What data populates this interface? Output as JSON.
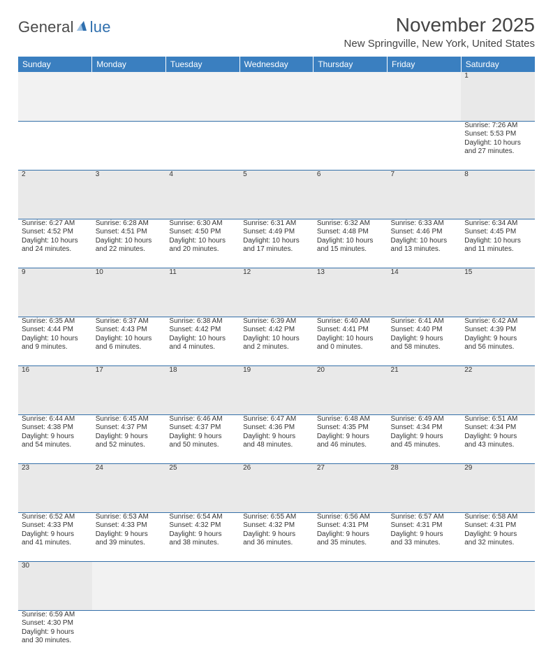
{
  "logo": {
    "part1": "General",
    "part2": "lue"
  },
  "header": {
    "month_title": "November 2025",
    "location": "New Springville, New York, United States"
  },
  "day_headers": [
    "Sunday",
    "Monday",
    "Tuesday",
    "Wednesday",
    "Thursday",
    "Friday",
    "Saturday"
  ],
  "colors": {
    "header_bg": "#3a7fc0",
    "rule": "#346fa8",
    "daynum_bg": "#e9e9e9",
    "text": "#333333"
  },
  "weeks": [
    {
      "nums": [
        "",
        "",
        "",
        "",
        "",
        "",
        "1"
      ],
      "sunrise": [
        "",
        "",
        "",
        "",
        "",
        "",
        "Sunrise: 7:26 AM"
      ],
      "sunset": [
        "",
        "",
        "",
        "",
        "",
        "",
        "Sunset: 5:53 PM"
      ],
      "day1": [
        "",
        "",
        "",
        "",
        "",
        "",
        "Daylight: 10 hours"
      ],
      "day2": [
        "",
        "",
        "",
        "",
        "",
        "",
        "and 27 minutes."
      ]
    },
    {
      "nums": [
        "2",
        "3",
        "4",
        "5",
        "6",
        "7",
        "8"
      ],
      "sunrise": [
        "Sunrise: 6:27 AM",
        "Sunrise: 6:28 AM",
        "Sunrise: 6:30 AM",
        "Sunrise: 6:31 AM",
        "Sunrise: 6:32 AM",
        "Sunrise: 6:33 AM",
        "Sunrise: 6:34 AM"
      ],
      "sunset": [
        "Sunset: 4:52 PM",
        "Sunset: 4:51 PM",
        "Sunset: 4:50 PM",
        "Sunset: 4:49 PM",
        "Sunset: 4:48 PM",
        "Sunset: 4:46 PM",
        "Sunset: 4:45 PM"
      ],
      "day1": [
        "Daylight: 10 hours",
        "Daylight: 10 hours",
        "Daylight: 10 hours",
        "Daylight: 10 hours",
        "Daylight: 10 hours",
        "Daylight: 10 hours",
        "Daylight: 10 hours"
      ],
      "day2": [
        "and 24 minutes.",
        "and 22 minutes.",
        "and 20 minutes.",
        "and 17 minutes.",
        "and 15 minutes.",
        "and 13 minutes.",
        "and 11 minutes."
      ]
    },
    {
      "nums": [
        "9",
        "10",
        "11",
        "12",
        "13",
        "14",
        "15"
      ],
      "sunrise": [
        "Sunrise: 6:35 AM",
        "Sunrise: 6:37 AM",
        "Sunrise: 6:38 AM",
        "Sunrise: 6:39 AM",
        "Sunrise: 6:40 AM",
        "Sunrise: 6:41 AM",
        "Sunrise: 6:42 AM"
      ],
      "sunset": [
        "Sunset: 4:44 PM",
        "Sunset: 4:43 PM",
        "Sunset: 4:42 PM",
        "Sunset: 4:42 PM",
        "Sunset: 4:41 PM",
        "Sunset: 4:40 PM",
        "Sunset: 4:39 PM"
      ],
      "day1": [
        "Daylight: 10 hours",
        "Daylight: 10 hours",
        "Daylight: 10 hours",
        "Daylight: 10 hours",
        "Daylight: 10 hours",
        "Daylight: 9 hours",
        "Daylight: 9 hours"
      ],
      "day2": [
        "and 9 minutes.",
        "and 6 minutes.",
        "and 4 minutes.",
        "and 2 minutes.",
        "and 0 minutes.",
        "and 58 minutes.",
        "and 56 minutes."
      ]
    },
    {
      "nums": [
        "16",
        "17",
        "18",
        "19",
        "20",
        "21",
        "22"
      ],
      "sunrise": [
        "Sunrise: 6:44 AM",
        "Sunrise: 6:45 AM",
        "Sunrise: 6:46 AM",
        "Sunrise: 6:47 AM",
        "Sunrise: 6:48 AM",
        "Sunrise: 6:49 AM",
        "Sunrise: 6:51 AM"
      ],
      "sunset": [
        "Sunset: 4:38 PM",
        "Sunset: 4:37 PM",
        "Sunset: 4:37 PM",
        "Sunset: 4:36 PM",
        "Sunset: 4:35 PM",
        "Sunset: 4:34 PM",
        "Sunset: 4:34 PM"
      ],
      "day1": [
        "Daylight: 9 hours",
        "Daylight: 9 hours",
        "Daylight: 9 hours",
        "Daylight: 9 hours",
        "Daylight: 9 hours",
        "Daylight: 9 hours",
        "Daylight: 9 hours"
      ],
      "day2": [
        "and 54 minutes.",
        "and 52 minutes.",
        "and 50 minutes.",
        "and 48 minutes.",
        "and 46 minutes.",
        "and 45 minutes.",
        "and 43 minutes."
      ]
    },
    {
      "nums": [
        "23",
        "24",
        "25",
        "26",
        "27",
        "28",
        "29"
      ],
      "sunrise": [
        "Sunrise: 6:52 AM",
        "Sunrise: 6:53 AM",
        "Sunrise: 6:54 AM",
        "Sunrise: 6:55 AM",
        "Sunrise: 6:56 AM",
        "Sunrise: 6:57 AM",
        "Sunrise: 6:58 AM"
      ],
      "sunset": [
        "Sunset: 4:33 PM",
        "Sunset: 4:33 PM",
        "Sunset: 4:32 PM",
        "Sunset: 4:32 PM",
        "Sunset: 4:31 PM",
        "Sunset: 4:31 PM",
        "Sunset: 4:31 PM"
      ],
      "day1": [
        "Daylight: 9 hours",
        "Daylight: 9 hours",
        "Daylight: 9 hours",
        "Daylight: 9 hours",
        "Daylight: 9 hours",
        "Daylight: 9 hours",
        "Daylight: 9 hours"
      ],
      "day2": [
        "and 41 minutes.",
        "and 39 minutes.",
        "and 38 minutes.",
        "and 36 minutes.",
        "and 35 minutes.",
        "and 33 minutes.",
        "and 32 minutes."
      ]
    },
    {
      "nums": [
        "30",
        "",
        "",
        "",
        "",
        "",
        ""
      ],
      "sunrise": [
        "Sunrise: 6:59 AM",
        "",
        "",
        "",
        "",
        "",
        ""
      ],
      "sunset": [
        "Sunset: 4:30 PM",
        "",
        "",
        "",
        "",
        "",
        ""
      ],
      "day1": [
        "Daylight: 9 hours",
        "",
        "",
        "",
        "",
        "",
        ""
      ],
      "day2": [
        "and 30 minutes.",
        "",
        "",
        "",
        "",
        "",
        ""
      ]
    }
  ]
}
